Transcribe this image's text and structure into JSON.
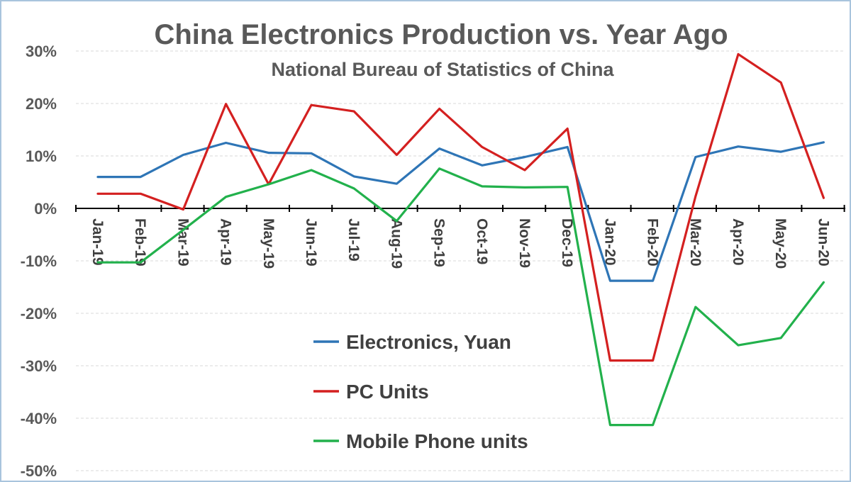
{
  "chart_data": {
    "type": "line",
    "title": "China Electronics Production vs. Year Ago",
    "subtitle": "National Bureau of Statistics of China",
    "xlabel": "",
    "ylabel": "",
    "categories": [
      "Jan-19",
      "Feb-19",
      "Mar-19",
      "Apr-19",
      "May-19",
      "Jun-19",
      "Jul-19",
      "Aug-19",
      "Sep-19",
      "Oct-19",
      "Nov-19",
      "Dec-19",
      "Jan-20",
      "Feb-20",
      "Mar-20",
      "Apr-20",
      "May-20",
      "Jun-20"
    ],
    "ylim": [
      -50,
      30
    ],
    "yticks": [
      -50,
      -40,
      -30,
      -20,
      -10,
      0,
      10,
      20,
      30
    ],
    "ytick_labels": [
      "-50%",
      "-40%",
      "-30%",
      "-20%",
      "-10%",
      "0%",
      "10%",
      "20%",
      "30%"
    ],
    "grid": true,
    "legend_position": "center-bottom",
    "series": [
      {
        "name": "Electronics, Yuan",
        "color": "#2e75b6",
        "values": [
          6.0,
          6.0,
          10.2,
          12.5,
          10.6,
          10.5,
          6.1,
          4.7,
          11.4,
          8.2,
          9.8,
          11.7,
          -13.8,
          -13.8,
          9.8,
          11.8,
          10.8,
          12.6
        ]
      },
      {
        "name": "PC Units",
        "color": "#d42020",
        "values": [
          2.8,
          2.8,
          -0.2,
          19.9,
          4.6,
          19.7,
          18.5,
          10.2,
          19.0,
          11.7,
          7.3,
          15.2,
          -29.0,
          -29.0,
          2.3,
          29.4,
          24.0,
          2.0
        ]
      },
      {
        "name": "Mobile Phone units",
        "color": "#22b14c",
        "values": [
          -10.3,
          -10.3,
          -4.1,
          2.2,
          4.6,
          7.3,
          3.8,
          -2.4,
          7.6,
          4.2,
          4.0,
          4.1,
          -41.3,
          -41.3,
          -18.8,
          -26.1,
          -24.7,
          -14.1
        ]
      }
    ]
  }
}
